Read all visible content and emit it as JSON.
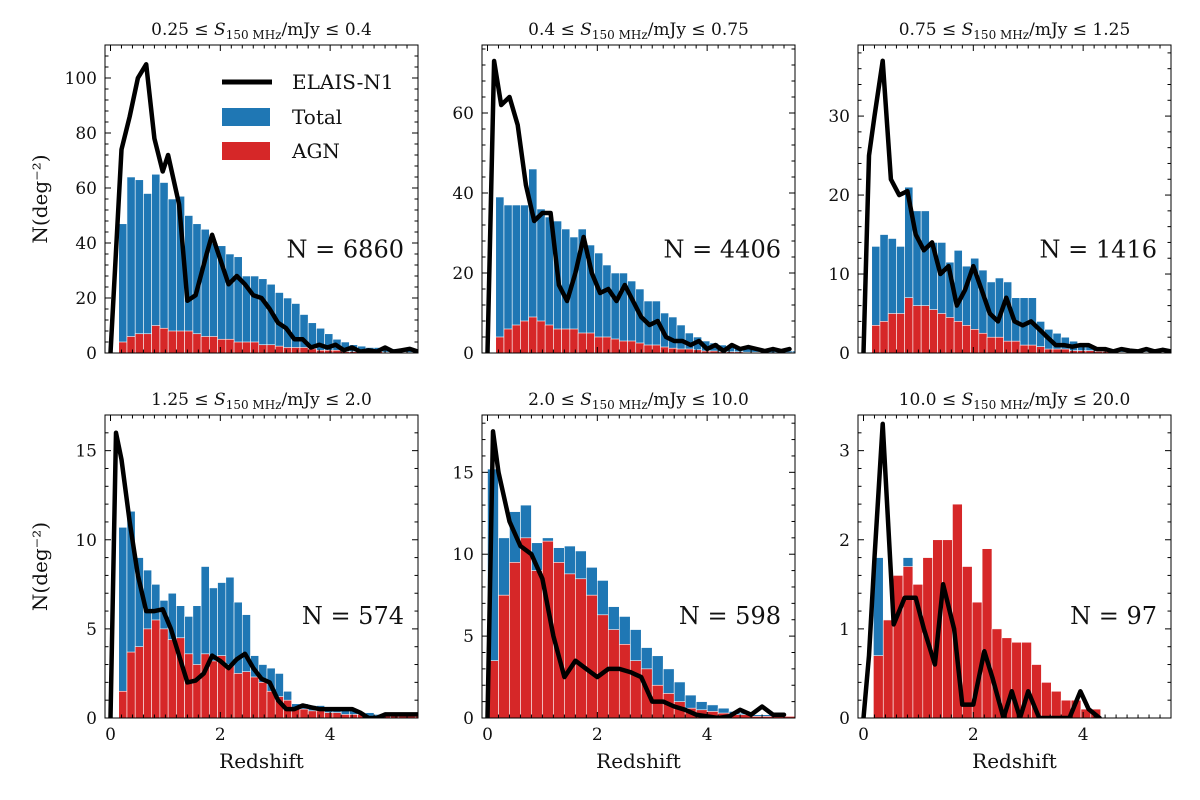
{
  "colors": {
    "total": "#1f77b4",
    "agn": "#d62728",
    "line": "#000000"
  },
  "legend": {
    "line": "ELAIS-N1",
    "total": "Total",
    "agn": "AGN"
  },
  "xlabel": "Redshift",
  "ylabel": "N(deg⁻²)",
  "chart_data": [
    {
      "type": "bar",
      "title": "0.25 ≤ S150 MHz/mJy ≤ 0.4",
      "title_parts": {
        "lo": "0.25",
        "hi": "0.4"
      },
      "n_label": "N = 6860",
      "xlim": [
        -0.1,
        5.6
      ],
      "ylim": [
        0,
        112
      ],
      "xticks": [
        0,
        2,
        4
      ],
      "yticks": [
        0,
        20,
        40,
        60,
        80,
        100
      ],
      "bin_width": 0.15,
      "total": [
        0,
        47,
        64,
        63,
        58,
        65,
        62,
        56,
        57,
        50,
        47,
        45,
        40,
        39,
        36,
        35,
        28,
        28,
        27,
        25,
        22,
        20,
        18,
        14,
        11,
        9,
        7,
        5,
        4,
        3,
        2.5,
        2,
        2,
        1.5,
        1.5,
        1.5,
        1,
        1
      ],
      "agn": [
        0,
        4,
        6,
        7,
        7,
        10,
        9,
        8,
        8,
        8,
        7,
        6,
        6,
        5,
        5,
        4,
        4,
        4,
        3,
        3,
        2.5,
        2,
        2,
        2,
        1.5,
        1,
        1,
        1,
        0.5,
        0.5,
        0.5,
        0.5,
        0.5,
        0.3,
        0.3,
        0.3,
        0.2,
        0.2
      ],
      "line_x": [
        0,
        0.2,
        0.35,
        0.5,
        0.65,
        0.8,
        0.95,
        1.05,
        1.25,
        1.4,
        1.55,
        1.75,
        1.85,
        2.0,
        2.15,
        2.3,
        2.45,
        2.6,
        2.75,
        2.9,
        3.05,
        3.2,
        3.35,
        3.5,
        3.65,
        3.8,
        3.95,
        4.1,
        4.25,
        4.4,
        4.55,
        4.7,
        4.85,
        5.0,
        5.15,
        5.3,
        5.45,
        5.6
      ],
      "line_y": [
        0,
        74,
        86,
        100,
        105,
        78,
        66,
        72,
        54,
        19,
        21,
        36,
        43,
        34,
        25,
        28,
        25,
        21,
        20,
        16,
        11,
        9,
        5,
        5,
        2,
        3,
        2,
        3,
        1,
        2,
        0.5,
        1,
        0.5,
        2,
        0.5,
        1,
        1.5,
        0.5
      ]
    },
    {
      "type": "bar",
      "title": "0.4 ≤ S150 MHz/mJy ≤ 0.75",
      "title_parts": {
        "lo": "0.4",
        "hi": "0.75"
      },
      "n_label": "N = 4406",
      "xlim": [
        -0.1,
        5.6
      ],
      "ylim": [
        0,
        77
      ],
      "xticks": [
        0,
        2,
        4
      ],
      "yticks": [
        0,
        20,
        40,
        60
      ],
      "bin_width": 0.15,
      "total": [
        0,
        39,
        37,
        37,
        37,
        46,
        36,
        34,
        33,
        31,
        29,
        31,
        27,
        25,
        22,
        20,
        20,
        18,
        16,
        13,
        13,
        10,
        9,
        7,
        5,
        4,
        3,
        2.5,
        2,
        1.5,
        1.5,
        1.2,
        1,
        1,
        0.8,
        0.8,
        0.5,
        0.5
      ],
      "agn": [
        0,
        4,
        6,
        7,
        8,
        9,
        8,
        7,
        6,
        6,
        6,
        5,
        5,
        4,
        4,
        3.5,
        3,
        3,
        2.5,
        2,
        2,
        1.5,
        1.2,
        1,
        1,
        0.8,
        0.5,
        0.5,
        0.3,
        0.3,
        0.3,
        0.2,
        0.2,
        0.2,
        0.1,
        0.1,
        0.1,
        0.1
      ],
      "line_x": [
        0,
        0.12,
        0.25,
        0.4,
        0.55,
        0.7,
        0.85,
        1.0,
        1.15,
        1.3,
        1.45,
        1.6,
        1.75,
        1.9,
        2.05,
        2.2,
        2.35,
        2.5,
        2.65,
        2.8,
        2.95,
        3.1,
        3.25,
        3.4,
        3.55,
        3.7,
        3.85,
        4.0,
        4.15,
        4.3,
        4.45,
        4.6,
        4.75,
        4.9,
        5.05,
        5.2,
        5.35,
        5.5
      ],
      "line_y": [
        0,
        73,
        62,
        64,
        57,
        42,
        33,
        35,
        35,
        17,
        13,
        20,
        29,
        20,
        15,
        16,
        13,
        17,
        13,
        9,
        7,
        8,
        4,
        3,
        3,
        2,
        3,
        1,
        2,
        0.5,
        2,
        1,
        1.5,
        1,
        0.5,
        1,
        0.5,
        1
      ]
    },
    {
      "type": "bar",
      "title": "0.75 ≤ S150 MHz/mJy ≤ 1.25",
      "title_parts": {
        "lo": "0.75",
        "hi": "1.25"
      },
      "n_label": "N = 1416",
      "xlim": [
        -0.1,
        5.6
      ],
      "ylim": [
        0,
        39
      ],
      "xticks": [
        0,
        2,
        4
      ],
      "yticks": [
        0,
        10,
        20,
        30
      ],
      "bin_width": 0.15,
      "total": [
        0,
        13.5,
        15,
        14.5,
        13.5,
        21,
        18,
        18,
        14,
        14,
        11.5,
        13,
        11,
        12,
        10.5,
        9,
        9.5,
        9,
        7,
        7,
        7,
        4,
        3,
        2.5,
        2,
        1.5,
        1,
        1,
        0.5,
        0.5,
        0.5,
        0.3,
        0.3,
        0.3,
        0.2,
        0.2,
        0.2,
        0.2
      ],
      "agn": [
        0,
        3.5,
        4,
        5,
        5,
        7,
        6,
        6,
        5.5,
        5,
        4.5,
        4,
        3.5,
        3,
        2.5,
        2,
        2,
        1.5,
        1.5,
        1,
        1,
        0.8,
        0.5,
        0.5,
        0.5,
        0.3,
        0.3,
        0.3,
        0.2,
        0.2,
        0.1,
        0.1,
        0.1,
        0.1,
        0.1,
        0.1,
        0.1,
        0.1
      ],
      "line_x": [
        0,
        0.1,
        0.2,
        0.35,
        0.5,
        0.65,
        0.8,
        0.95,
        1.1,
        1.25,
        1.4,
        1.55,
        1.7,
        1.85,
        2.0,
        2.15,
        2.3,
        2.45,
        2.6,
        2.75,
        2.9,
        3.05,
        3.2,
        3.35,
        3.5,
        3.65,
        3.8,
        3.95,
        4.1,
        4.25,
        4.4,
        4.55,
        4.7,
        4.85,
        5.0,
        5.15,
        5.3,
        5.45,
        5.6
      ],
      "line_y": [
        0,
        25,
        30,
        37,
        22,
        20,
        20.5,
        15,
        13,
        14,
        10,
        11,
        6,
        8,
        11,
        8,
        5,
        4,
        7,
        4,
        3.5,
        4,
        3,
        2,
        1,
        1,
        0.8,
        1,
        1,
        0.5,
        0.5,
        0.2,
        0.5,
        0.3,
        0.2,
        0.5,
        0.2,
        0.4,
        0.2
      ]
    },
    {
      "type": "bar",
      "title": "1.25 ≤ S150 MHz/mJy ≤ 2.0",
      "title_parts": {
        "lo": "1.25",
        "hi": "2.0"
      },
      "n_label": "N = 574",
      "xlim": [
        -0.1,
        5.6
      ],
      "ylim": [
        0,
        17
      ],
      "xticks": [
        0,
        2,
        4
      ],
      "yticks": [
        0,
        5,
        10,
        15
      ],
      "bin_width": 0.15,
      "total": [
        0,
        10.7,
        11.6,
        9,
        8.3,
        7.5,
        6.6,
        7,
        6.3,
        5.7,
        6.3,
        8.5,
        7.3,
        7.6,
        7.9,
        6.5,
        5.8,
        3.5,
        3,
        2.8,
        2.5,
        1.5,
        0.8,
        0.8,
        0.7,
        0.7,
        0.5,
        0.5,
        0.5,
        0.4,
        0.3,
        0.3,
        0.2,
        0.2,
        0.1,
        0.1,
        0.1,
        0.1
      ],
      "agn": [
        0,
        1.5,
        3.7,
        4,
        5,
        5.5,
        5,
        4.4,
        4.5,
        3.6,
        3,
        3.6,
        3.2,
        3.5,
        3,
        2.5,
        2.6,
        2.3,
        2,
        1.5,
        1.2,
        1,
        0.5,
        0.5,
        0.4,
        0.4,
        0.3,
        0.3,
        0.2,
        0.2,
        0.2,
        0.1,
        0.1,
        0.1,
        0.1,
        0.1,
        0.1,
        0.1
      ],
      "line_x": [
        0,
        0.1,
        0.2,
        0.35,
        0.5,
        0.65,
        0.8,
        0.95,
        1.1,
        1.25,
        1.4,
        1.55,
        1.7,
        1.85,
        2.0,
        2.15,
        2.3,
        2.45,
        2.6,
        2.75,
        2.9,
        3.05,
        3.2,
        3.35,
        3.5,
        3.65,
        3.8,
        3.95,
        4.1,
        4.25,
        4.4,
        4.55,
        4.7,
        4.85,
        5.0,
        5.15,
        5.3,
        5.45,
        5.6
      ],
      "line_y": [
        0,
        16,
        14.5,
        11,
        8,
        6,
        6,
        6.1,
        5,
        3.5,
        2,
        2.1,
        2.5,
        3.5,
        3.2,
        2.8,
        3.3,
        3.6,
        2.8,
        2.2,
        2,
        1,
        0.5,
        0.5,
        0.7,
        0.6,
        0.5,
        0.5,
        0.5,
        0.5,
        0.5,
        0.3,
        0,
        0,
        0.2,
        0.2,
        0.2,
        0.2,
        0.2
      ]
    },
    {
      "type": "bar",
      "title": "2.0 ≤ S150 MHz/mJy ≤ 10.0",
      "title_parts": {
        "lo": "2.0",
        "hi": "10.0"
      },
      "n_label": "N = 598",
      "xlim": [
        -0.1,
        5.6
      ],
      "ylim": [
        0,
        18.5
      ],
      "xticks": [
        0,
        2,
        4
      ],
      "yticks": [
        0,
        5,
        10,
        15
      ],
      "bin_width": 0.2,
      "total": [
        15.2,
        11,
        12.6,
        13,
        10.7,
        11,
        10.4,
        10.5,
        10.2,
        9.2,
        8.4,
        6.8,
        6.2,
        5.4,
        4.3,
        3.8,
        3,
        2.2,
        1.4,
        1,
        0.8,
        0.6,
        0.4,
        0.3,
        0.2,
        0.2,
        0.1,
        0.1
      ],
      "agn": [
        3.5,
        7.5,
        9.5,
        11,
        9,
        10.8,
        9.5,
        8.8,
        8.5,
        7.5,
        6.3,
        5.4,
        4.5,
        3.5,
        3,
        2,
        1.5,
        1,
        0.6,
        0.5,
        0.4,
        0.3,
        0.2,
        0.2,
        0.1,
        0.1,
        0.1,
        0.1
      ],
      "line_x": [
        0,
        0.1,
        0.2,
        0.4,
        0.6,
        0.8,
        1.0,
        1.2,
        1.4,
        1.6,
        1.8,
        2.0,
        2.2,
        2.4,
        2.6,
        2.8,
        3.0,
        3.2,
        3.4,
        3.6,
        3.8,
        4.0,
        4.2,
        4.4,
        4.6,
        4.8,
        5.0,
        5.2,
        5.4
      ],
      "line_y": [
        0,
        17.5,
        15,
        12,
        10.5,
        10,
        8.5,
        5,
        2.5,
        3.5,
        3,
        2.5,
        3,
        3,
        2.8,
        2.5,
        1,
        1,
        0.7,
        0.5,
        0.2,
        0.1,
        0,
        0.1,
        0.5,
        0.2,
        0.7,
        0.2,
        0.2
      ]
    },
    {
      "type": "bar",
      "title": "10.0 ≤ S150 MHz/mJy ≤ 20.0",
      "title_parts": {
        "lo": "10.0",
        "hi": "20.0"
      },
      "n_label": "N = 97",
      "xlim": [
        -0.1,
        5.6
      ],
      "ylim": [
        0,
        3.4
      ],
      "xticks": [
        0,
        2,
        4
      ],
      "yticks": [
        0,
        1,
        2,
        3
      ],
      "bin_width": 0.18,
      "total": [
        0,
        1.8,
        1.1,
        1.6,
        1.8,
        1.5,
        1.8,
        2.0,
        2.0,
        2.4,
        1.7,
        1.3,
        1.9,
        1.0,
        0.9,
        0.85,
        0.85,
        0.6,
        0.4,
        0.3,
        0.2,
        0.2,
        0.1,
        0.1
      ],
      "agn": [
        0,
        0.7,
        1.1,
        1.6,
        1.7,
        1.5,
        1.8,
        2.0,
        2.0,
        2.4,
        1.7,
        1.3,
        1.9,
        1.0,
        0.9,
        0.85,
        0.85,
        0.6,
        0.4,
        0.3,
        0.2,
        0.2,
        0.1,
        0.1
      ],
      "line_x": [
        0,
        0.1,
        0.2,
        0.35,
        0.55,
        0.75,
        0.95,
        1.1,
        1.3,
        1.45,
        1.65,
        1.8,
        2.0,
        2.2,
        2.35,
        2.55,
        2.7,
        2.85,
        3.0,
        3.2,
        3.35,
        3.55,
        3.75,
        3.95,
        4.1,
        4.3
      ],
      "line_y": [
        0,
        0.7,
        1.8,
        3.3,
        1.05,
        1.35,
        1.35,
        1.0,
        0.6,
        1.5,
        1.0,
        0.15,
        0.15,
        0.75,
        0.45,
        0,
        0.3,
        0,
        0.3,
        0,
        0,
        0,
        0,
        0.3,
        0.1,
        0
      ]
    }
  ]
}
